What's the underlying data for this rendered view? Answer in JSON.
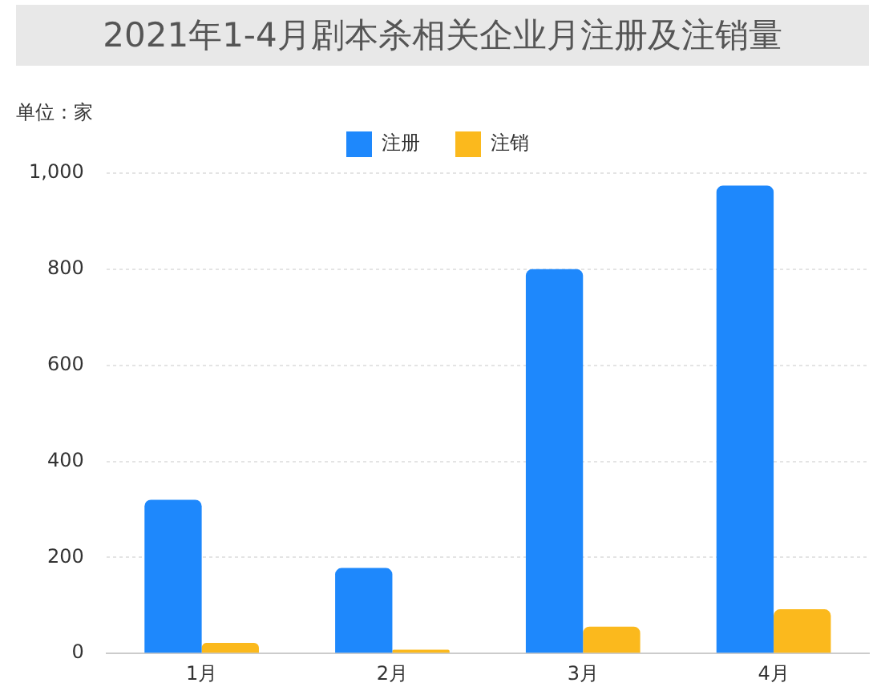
{
  "chart_data": {
    "type": "bar",
    "title": "2021年1-4月剧本杀相关企业月注册及注销量",
    "annotations": [
      "单位：家"
    ],
    "categories": [
      "1月",
      "2月",
      "3月",
      "4月"
    ],
    "series": [
      {
        "name": "注册",
        "color": "#1e88fc",
        "values": [
          320,
          178,
          800,
          974
        ]
      },
      {
        "name": "注销",
        "color": "#fbb91d",
        "values": [
          22,
          8,
          56,
          92
        ]
      }
    ],
    "ylim": [
      0,
      1000
    ],
    "yticks": [
      0,
      200,
      400,
      600,
      800,
      {
        "value": 1000,
        "label": "1,000"
      }
    ],
    "grid": "y",
    "legend": "top"
  }
}
